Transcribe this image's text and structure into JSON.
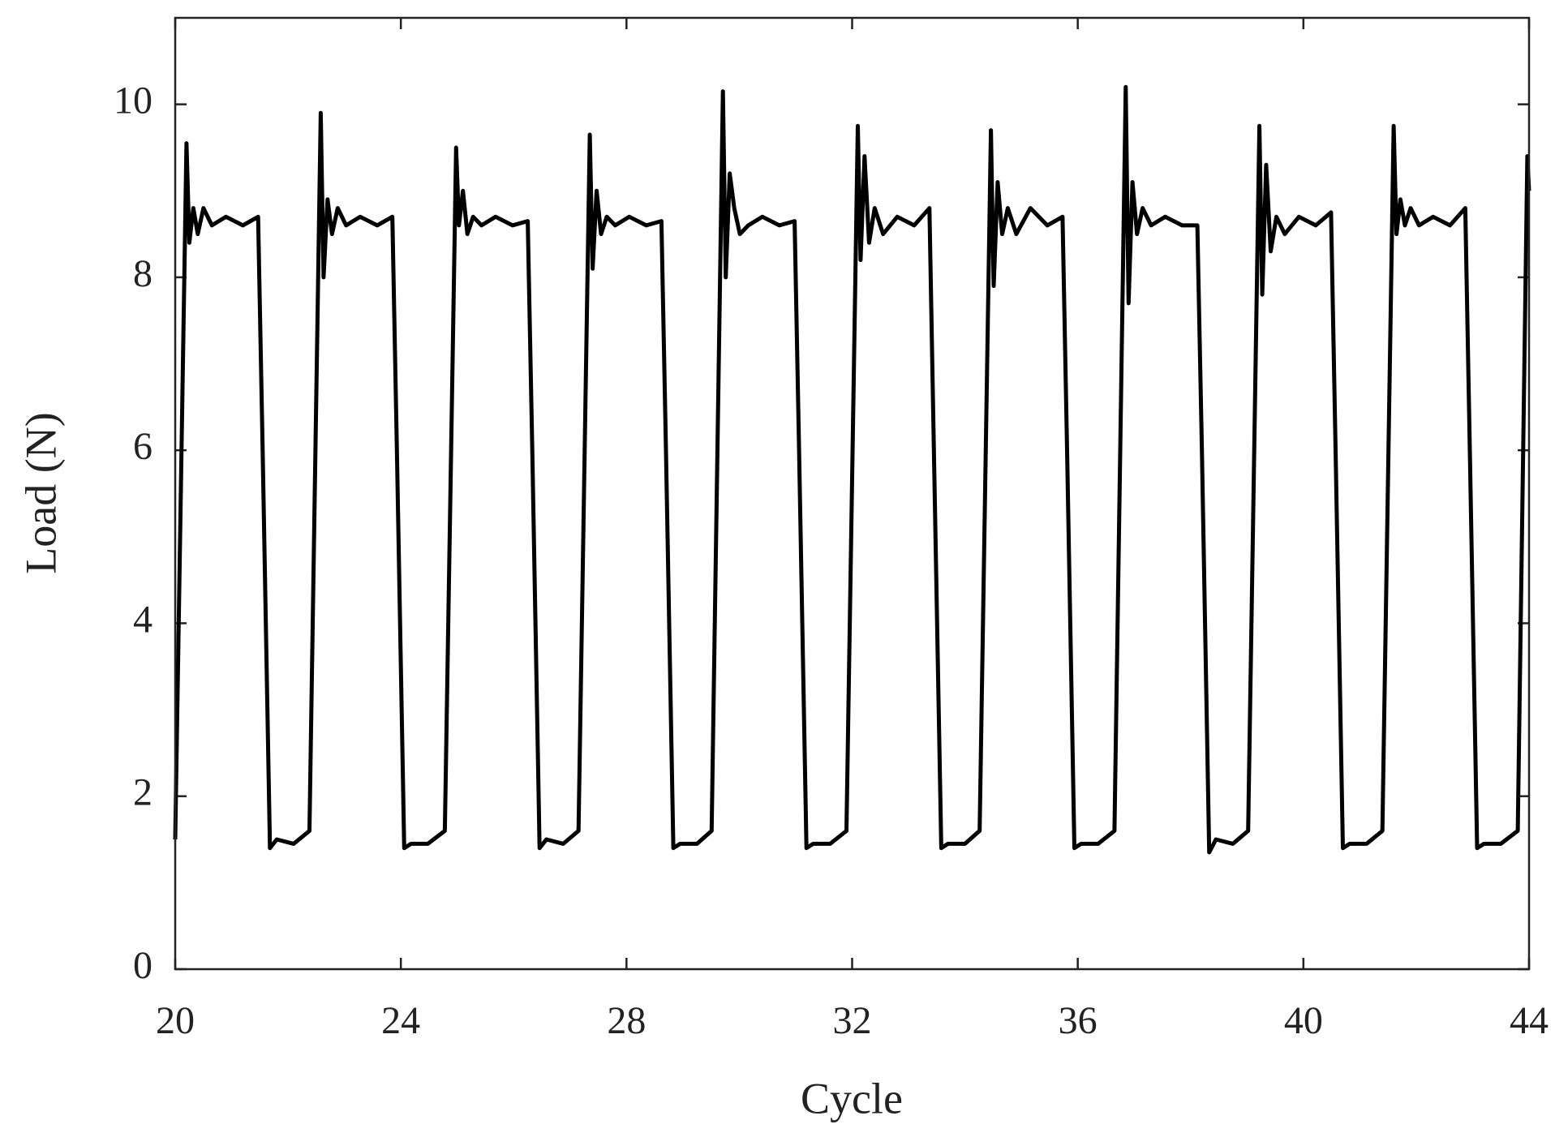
{
  "chart_data": {
    "type": "line",
    "x_label": "Cycle",
    "y_label": "Load (N)",
    "xlim": [
      20,
      44
    ],
    "xticks": [
      20,
      24,
      28,
      32,
      36,
      40,
      44
    ],
    "ylim": [
      0,
      11
    ],
    "yticks": [
      0,
      2,
      4,
      6,
      8,
      10
    ],
    "grid": false,
    "series": [
      {
        "name": "Load",
        "color": "#000000",
        "x": [
          20.0,
          20.2,
          20.25,
          20.32,
          20.4,
          20.5,
          20.65,
          20.9,
          21.2,
          21.47,
          21.55,
          21.68,
          21.8,
          22.1,
          22.38,
          22.58,
          22.63,
          22.7,
          22.78,
          22.88,
          23.03,
          23.28,
          23.58,
          23.85,
          23.93,
          24.06,
          24.18,
          24.48,
          24.78,
          24.98,
          25.03,
          25.1,
          25.18,
          25.28,
          25.43,
          25.68,
          25.98,
          26.25,
          26.33,
          26.46,
          26.58,
          26.88,
          27.15,
          27.35,
          27.4,
          27.47,
          27.55,
          27.65,
          27.8,
          28.05,
          28.35,
          28.62,
          28.7,
          28.83,
          28.95,
          29.25,
          29.51,
          29.71,
          29.76,
          29.83,
          29.91,
          30.01,
          30.16,
          30.41,
          30.71,
          30.98,
          31.06,
          31.19,
          31.31,
          31.61,
          31.9,
          32.1,
          32.15,
          32.22,
          32.3,
          32.4,
          32.55,
          32.8,
          33.1,
          33.37,
          33.45,
          33.58,
          33.7,
          34.0,
          34.26,
          34.46,
          34.51,
          34.58,
          34.66,
          34.76,
          34.91,
          35.16,
          35.46,
          35.73,
          35.81,
          35.94,
          36.06,
          36.36,
          36.65,
          36.85,
          36.9,
          36.97,
          37.05,
          37.15,
          37.3,
          37.55,
          37.85,
          38.12,
          38.2,
          38.33,
          38.45,
          38.75,
          39.02,
          39.22,
          39.27,
          39.34,
          39.42,
          39.52,
          39.67,
          39.92,
          40.22,
          40.49,
          40.57,
          40.7,
          40.82,
          41.12,
          41.4,
          41.6,
          41.65,
          41.72,
          41.8,
          41.9,
          42.05,
          42.3,
          42.6,
          42.87,
          42.95,
          43.08,
          43.2,
          43.5,
          43.8,
          43.97,
          44.0
        ],
        "values": [
          1.5,
          9.55,
          8.4,
          8.8,
          8.5,
          8.8,
          8.6,
          8.7,
          8.6,
          8.7,
          6.0,
          1.4,
          1.5,
          1.45,
          1.6,
          9.9,
          8.0,
          8.9,
          8.5,
          8.8,
          8.6,
          8.7,
          8.6,
          8.7,
          6.0,
          1.4,
          1.45,
          1.45,
          1.6,
          9.5,
          8.6,
          9.0,
          8.5,
          8.7,
          8.6,
          8.7,
          8.6,
          8.65,
          6.0,
          1.4,
          1.5,
          1.45,
          1.6,
          9.65,
          8.1,
          9.0,
          8.5,
          8.7,
          8.6,
          8.7,
          8.6,
          8.65,
          6.0,
          1.4,
          1.45,
          1.45,
          1.6,
          10.15,
          8.0,
          9.2,
          8.8,
          8.5,
          8.6,
          8.7,
          8.6,
          8.65,
          6.0,
          1.4,
          1.45,
          1.45,
          1.6,
          9.75,
          8.2,
          9.4,
          8.4,
          8.8,
          8.5,
          8.7,
          8.6,
          8.8,
          6.0,
          1.4,
          1.45,
          1.45,
          1.6,
          9.7,
          7.9,
          9.1,
          8.5,
          8.8,
          8.5,
          8.8,
          8.6,
          8.7,
          6.0,
          1.4,
          1.45,
          1.45,
          1.6,
          10.2,
          7.7,
          9.1,
          8.5,
          8.8,
          8.6,
          8.7,
          8.6,
          8.6,
          6.0,
          1.35,
          1.5,
          1.45,
          1.6,
          9.75,
          7.8,
          9.3,
          8.3,
          8.7,
          8.5,
          8.7,
          8.6,
          8.75,
          6.0,
          1.4,
          1.45,
          1.45,
          1.6,
          9.75,
          8.5,
          8.9,
          8.6,
          8.8,
          8.6,
          8.7,
          8.6,
          8.8,
          6.0,
          1.4,
          1.45,
          1.45,
          1.6,
          9.4,
          9.0
        ]
      }
    ]
  }
}
